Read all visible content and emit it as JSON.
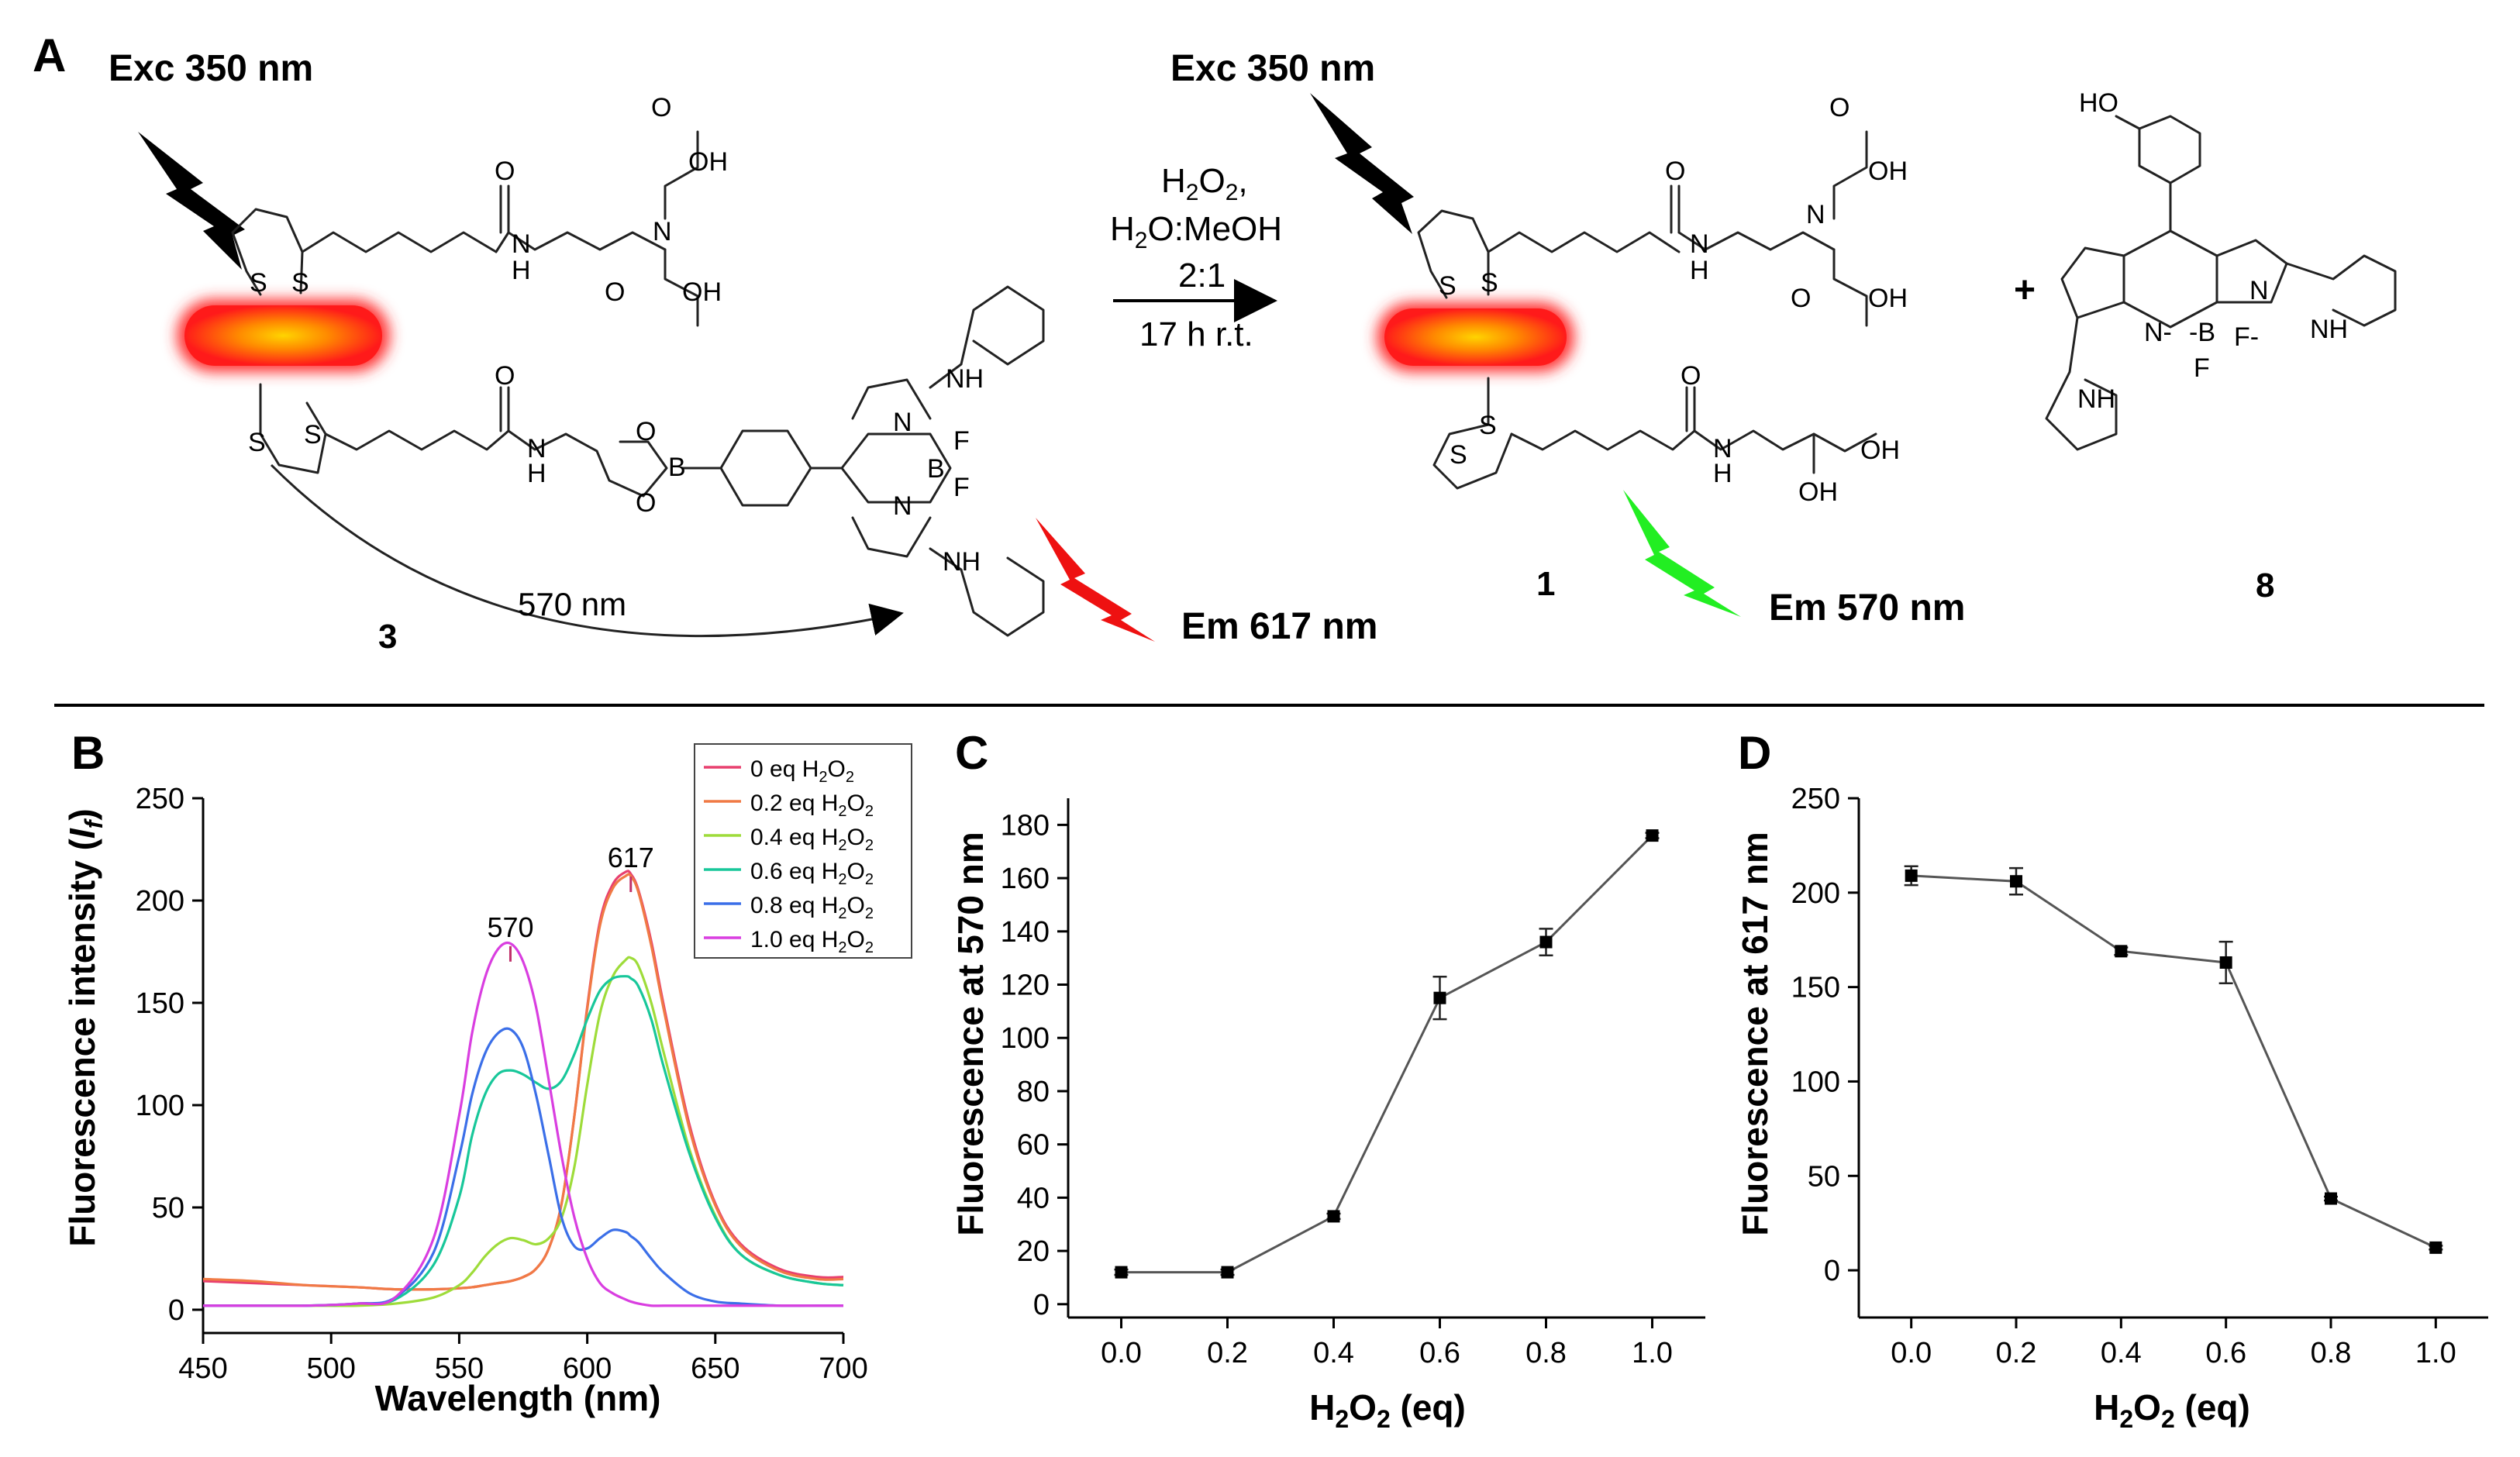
{
  "panels": {
    "a": "A",
    "b": "B",
    "c": "C",
    "d": "D"
  },
  "scheme": {
    "exc_left": "Exc 350 nm",
    "exc_right": "Exc 350 nm",
    "em_red": "Em 617 nm",
    "em_green": "Em 570 nm",
    "fret_label": "570 nm",
    "compound_3": "3",
    "compound_1": "1",
    "compound_8": "8",
    "plus": "+",
    "conditions": {
      "reagent_base": "H",
      "reagent_sub1": "2",
      "reagent_mid": "O",
      "reagent_sub2": "2",
      "reagent_tail": ",",
      "solvent_a": "H",
      "solvent_sub": "2",
      "solvent_b": "O:MeOH",
      "ratio": "2:1",
      "time": "17 h r.t."
    },
    "atoms": {
      "O": "O",
      "OH": "OH",
      "HO": "HO",
      "H": "H",
      "N": "N",
      "S": "S",
      "B": "B",
      "F": "F",
      "NH": "NH",
      "Nminus": "N-",
      "Bminus": "-B",
      "Fminus": "F-"
    },
    "colors": {
      "black": "#000000",
      "red": "#ee1111",
      "green": "#22ee22",
      "capsule_center": "#ffd700",
      "capsule_edge": "#ff1a1a"
    }
  },
  "chart_data": [
    {
      "panel": "B",
      "type": "line",
      "xlabel": "Wavelength (nm)",
      "ylabel_prefix": "Fluorescence intensity (",
      "ylabel_italic": "I",
      "ylabel_sub": "f",
      "ylabel_suffix": ")",
      "xlim": [
        450,
        700
      ],
      "ylim": [
        0,
        250
      ],
      "xticks": [
        "450",
        "500",
        "550",
        "600",
        "650",
        "700"
      ],
      "yticks": [
        "0",
        "50",
        "100",
        "150",
        "200",
        "250"
      ],
      "annotations": [
        {
          "text": "570",
          "x": 570,
          "y": 180
        },
        {
          "text": "617",
          "x": 617,
          "y": 214
        }
      ],
      "legend_position": "top-right",
      "legend_suffix_main": "H",
      "legend_suffix_sub": "2",
      "legend_suffix_end": "O",
      "x": [
        450,
        470,
        490,
        510,
        525,
        540,
        550,
        555,
        560,
        565,
        570,
        575,
        580,
        585,
        590,
        595,
        600,
        605,
        610,
        615,
        617,
        620,
        625,
        630,
        640,
        650,
        660,
        675,
        690,
        700
      ],
      "series": [
        {
          "name": "0 eq",
          "color": "#e8406f",
          "values": [
            14,
            13,
            12,
            11,
            10,
            10,
            10.5,
            11,
            12,
            13,
            14,
            16,
            20,
            30,
            52,
            95,
            148,
            190,
            208,
            214,
            213,
            205,
            180,
            148,
            90,
            52,
            32,
            20,
            16,
            16
          ]
        },
        {
          "name": "0.2 eq",
          "color": "#f07a45",
          "values": [
            15,
            14,
            12,
            11,
            10,
            10,
            10.5,
            11,
            12,
            13,
            14,
            16,
            20,
            30,
            52,
            95,
            147,
            188,
            206,
            212,
            212,
            204,
            178,
            146,
            88,
            51,
            31,
            19,
            15,
            15
          ]
        },
        {
          "name": "0.4 eq",
          "color": "#9edc3a",
          "values": [
            2,
            2,
            2,
            2,
            3,
            6,
            12,
            18,
            26,
            32,
            35,
            34,
            32,
            35,
            45,
            70,
            110,
            145,
            163,
            171,
            172,
            168,
            150,
            125,
            78,
            46,
            27,
            17,
            13,
            12
          ]
        },
        {
          "name": "0.6 eq",
          "color": "#18c79a",
          "values": [
            2,
            2,
            2,
            3,
            5,
            22,
            55,
            85,
            105,
            115,
            117,
            115,
            111,
            108,
            112,
            125,
            142,
            156,
            162,
            163,
            162,
            158,
            142,
            118,
            76,
            45,
            27,
            17,
            13,
            12
          ]
        },
        {
          "name": "0.8 eq",
          "color": "#3b6fe8",
          "values": [
            2,
            2,
            2,
            3,
            6,
            28,
            75,
            105,
            125,
            135,
            137,
            128,
            105,
            75,
            45,
            31,
            30,
            35,
            39,
            38,
            36,
            33,
            25,
            18,
            8,
            4,
            3,
            2,
            2,
            2
          ]
        },
        {
          "name": "1.0 eq",
          "color": "#d93ee0",
          "values": [
            2,
            2,
            2,
            3,
            6,
            35,
            95,
            135,
            162,
            176,
            179,
            170,
            148,
            112,
            75,
            45,
            25,
            13,
            8,
            5,
            4,
            3,
            2,
            2,
            2,
            2,
            2,
            2,
            2,
            2
          ]
        }
      ]
    },
    {
      "panel": "C",
      "type": "scatter",
      "xlabel_main": "H",
      "xlabel_sub1": "2",
      "xlabel_mid": "O",
      "xlabel_sub2": "2",
      "xlabel_end": " (eq)",
      "ylabel": "Fluorescence at 570 nm",
      "xlim": [
        -0.1,
        1.1
      ],
      "ylim": [
        -5,
        190
      ],
      "xticks": [
        "0.0",
        "0.2",
        "0.4",
        "0.6",
        "0.8",
        "1.0"
      ],
      "yticks": [
        "0",
        "20",
        "40",
        "60",
        "80",
        "100",
        "120",
        "140",
        "160",
        "180"
      ],
      "x": [
        0.0,
        0.2,
        0.4,
        0.6,
        0.8,
        1.0
      ],
      "y": [
        12,
        12,
        33,
        115,
        136,
        176
      ],
      "err": [
        1,
        1,
        1,
        8,
        5,
        1
      ]
    },
    {
      "panel": "D",
      "type": "scatter",
      "xlabel_main": "H",
      "xlabel_sub1": "2",
      "xlabel_mid": "O",
      "xlabel_sub2": "2",
      "xlabel_end": " (eq)",
      "ylabel": "Fluorescence at 617 nm",
      "xlim": [
        -0.1,
        1.1
      ],
      "ylim": [
        -25,
        250
      ],
      "xticks": [
        "0.0",
        "0.2",
        "0.4",
        "0.6",
        "0.8",
        "1.0"
      ],
      "yticks": [
        "0",
        "50",
        "100",
        "150",
        "200",
        "250"
      ],
      "x": [
        0.0,
        0.2,
        0.4,
        0.6,
        0.8,
        1.0
      ],
      "y": [
        209,
        206,
        169,
        163,
        38,
        12
      ],
      "err": [
        5,
        7,
        2,
        11,
        1,
        1
      ]
    }
  ]
}
